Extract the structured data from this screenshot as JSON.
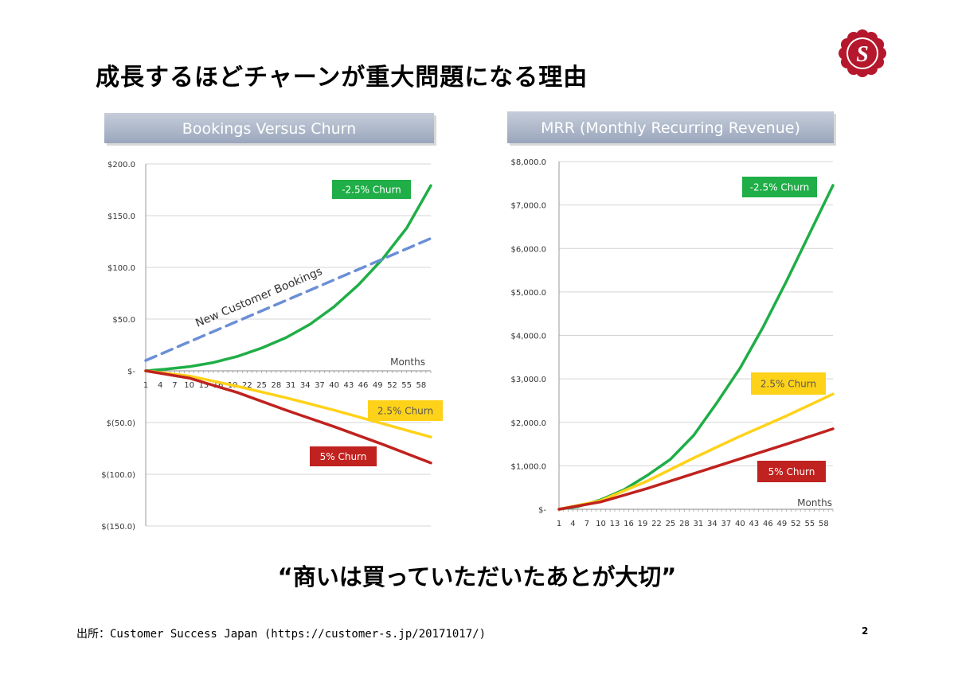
{
  "slide": {
    "title": "成長するほどチャーンが重大問題になる理由",
    "quote": "“商いは買っていただいたあとが大切”",
    "source": "出所：Customer Success Japan (https://customer-s.jp/20171017/)",
    "page_number": "2",
    "logo_letter": "S"
  },
  "colors": {
    "green": "#1fae47",
    "yellow": "#ffd21a",
    "red": "#c0221f",
    "blue": "#6b8fd6",
    "title_bar": "#9aa6bd",
    "logo": "#b5182d"
  },
  "chart_data": [
    {
      "type": "line",
      "title": "Bookings Versus Churn",
      "xlabel": "Months",
      "ylim": [
        -150,
        200
      ],
      "y_ticks": [
        200,
        150,
        100,
        50,
        0,
        -50,
        -100,
        -150
      ],
      "y_tick_labels": [
        "$200.0",
        "$150.0",
        "$100.0",
        "$50.0",
        "$-",
        "$(50.0)",
        "$(100.0)",
        "$(150.0)"
      ],
      "x_range": [
        1,
        60
      ],
      "x_tick_values": [
        1,
        4,
        7,
        10,
        13,
        16,
        19,
        22,
        25,
        28,
        31,
        34,
        37,
        40,
        43,
        46,
        49,
        52,
        55,
        58
      ],
      "x_tick_labels": [
        "1",
        "4",
        "7",
        "10",
        "13",
        "16",
        "19",
        "22",
        "25",
        "28",
        "31",
        "34",
        "37",
        "40",
        "43",
        "46",
        "49",
        "52",
        "55",
        "58"
      ],
      "grid": "horizontal",
      "series": [
        {
          "name": "-2.5% Churn",
          "color_key": "green",
          "x": [
            1,
            5,
            10,
            15,
            20,
            25,
            30,
            35,
            40,
            45,
            50,
            55,
            60
          ],
          "y": [
            0,
            1.5,
            4,
            8,
            14,
            22,
            32,
            45,
            62,
            83,
            108,
            138,
            179
          ]
        },
        {
          "name": "New Customer Bookings",
          "color_key": "blue",
          "dashed": true,
          "x": [
            1,
            60
          ],
          "y": [
            10,
            128
          ]
        },
        {
          "name": "2.5% Churn",
          "color_key": "yellow",
          "x": [
            1,
            10,
            20,
            30,
            40,
            50,
            60
          ],
          "y": [
            0,
            -5,
            -15,
            -26,
            -38,
            -51,
            -64
          ]
        },
        {
          "name": "5% Churn",
          "color_key": "red",
          "x": [
            1,
            10,
            20,
            30,
            40,
            50,
            60
          ],
          "y": [
            0,
            -7,
            -21,
            -38,
            -54,
            -71,
            -89
          ]
        }
      ],
      "legend_labels": [
        {
          "text": "-2.5% Churn",
          "color_key": "green",
          "placement": "top-right"
        },
        {
          "text": "2.5% Churn",
          "color_key": "yellow",
          "placement": "right"
        },
        {
          "text": "5% Churn",
          "color_key": "red",
          "placement": "bottom-right"
        }
      ],
      "annotations": [
        "New Customer Bookings"
      ]
    },
    {
      "type": "line",
      "title": "MRR (Monthly Recurring Revenue)",
      "xlabel": "Months",
      "ylim": [
        0,
        8000
      ],
      "y_ticks": [
        8000,
        7000,
        6000,
        5000,
        4000,
        3000,
        2000,
        1000,
        0
      ],
      "y_tick_labels": [
        "$8,000.0",
        "$7,000.0",
        "$6,000.0",
        "$5,000.0",
        "$4,000.0",
        "$3,000.0",
        "$2,000.0",
        "$1,000.0",
        "$-"
      ],
      "x_range": [
        1,
        60
      ],
      "x_tick_values": [
        1,
        4,
        7,
        10,
        13,
        16,
        19,
        22,
        25,
        28,
        31,
        34,
        37,
        40,
        43,
        46,
        49,
        52,
        55,
        58
      ],
      "x_tick_labels": [
        "1",
        "4",
        "7",
        "10",
        "13",
        "16",
        "19",
        "22",
        "25",
        "28",
        "31",
        "34",
        "37",
        "40",
        "43",
        "46",
        "49",
        "52",
        "55",
        "58"
      ],
      "grid": "horizontal",
      "series": [
        {
          "name": "-2.5% Churn",
          "color_key": "green",
          "x": [
            1,
            5,
            10,
            15,
            20,
            25,
            30,
            35,
            40,
            45,
            50,
            55,
            60
          ],
          "y": [
            0,
            60,
            220,
            450,
            780,
            1150,
            1700,
            2450,
            3250,
            4200,
            5250,
            6350,
            7450
          ]
        },
        {
          "name": "2.5% Churn",
          "color_key": "yellow",
          "x": [
            1,
            10,
            20,
            30,
            40,
            50,
            60
          ],
          "y": [
            0,
            200,
            650,
            1180,
            1680,
            2150,
            2650
          ]
        },
        {
          "name": "5% Churn",
          "color_key": "red",
          "x": [
            1,
            10,
            20,
            30,
            40,
            50,
            60
          ],
          "y": [
            0,
            170,
            480,
            820,
            1160,
            1500,
            1850
          ]
        }
      ],
      "legend_labels": [
        {
          "text": "-2.5% Churn",
          "color_key": "green",
          "placement": "top-right"
        },
        {
          "text": "2.5% Churn",
          "color_key": "yellow",
          "placement": "right"
        },
        {
          "text": "5% Churn",
          "color_key": "red",
          "placement": "bottom-right"
        }
      ]
    }
  ]
}
